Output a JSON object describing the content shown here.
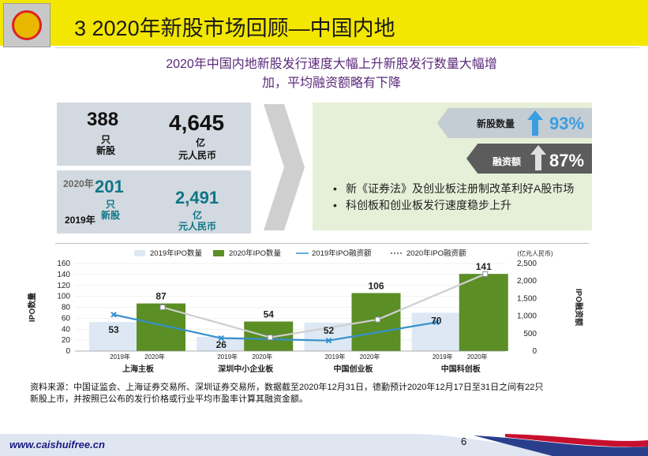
{
  "header": {
    "title": "3 2020年新股市场回顾—中国内地"
  },
  "subtitle": {
    "line1": "2020年中国内地新股发行速度大幅上升新股发行数量大幅增",
    "line2": "加，平均融资额略有下降"
  },
  "stats2020": {
    "count": "388",
    "count_unit": "只",
    "count_label": "新股",
    "amount": "4,645",
    "amount_unit": "亿",
    "amount_label": "元人民币"
  },
  "stats2019": {
    "year_2020": "2020年",
    "year_2019": "2019年",
    "count": "201",
    "count_unit": "只",
    "count_label": "新股",
    "amount": "2,491",
    "amount_unit": "亿",
    "amount_label": "元人民币"
  },
  "growth": {
    "ipo_count_label": "新股数量",
    "ipo_count_pct": "93%",
    "funds_label": "融资额",
    "funds_pct": "87%"
  },
  "bullets": [
    "新《证券法》及创业板注册制改革利好A股市场",
    "科创板和创业板发行速度稳步上升"
  ],
  "chart_data": {
    "type": "bar",
    "categories": [
      "上海主板",
      "深圳中小企业板",
      "中国创业板",
      "中国科创板"
    ],
    "year_labels": [
      "2019年",
      "2020年"
    ],
    "series": [
      {
        "name": "2019年IPO数量",
        "type": "bar",
        "axis": "left",
        "values": [
          53,
          26,
          52,
          70
        ],
        "color": "#dde8f4"
      },
      {
        "name": "2020年IPO数量",
        "type": "bar",
        "axis": "left",
        "values": [
          87,
          54,
          106,
          141
        ],
        "color": "#5b8e24"
      },
      {
        "name": "2019年IPO融资额",
        "type": "line",
        "axis": "right",
        "values": [
          1040,
          370,
          300,
          820
        ],
        "color": "#3690cc"
      },
      {
        "name": "2020年IPO融资额",
        "type": "line",
        "axis": "right",
        "values": [
          1250,
          390,
          900,
          2200
        ],
        "color": "#cfcfcf"
      }
    ],
    "bar_labels": {
      "2019年IPO数量": [
        "53",
        "26",
        "52",
        "70"
      ],
      "2020年IPO数量": [
        "87",
        "54",
        "106",
        "141"
      ]
    },
    "ylabel": "IPO数量",
    "ylabel_right": "IPO融资额",
    "yunit_right": "(亿元人民币)",
    "ylim": [
      0,
      160
    ],
    "ylim_right": [
      0,
      2500
    ],
    "yticks": [
      "0",
      "20",
      "40",
      "60",
      "80",
      "100",
      "120",
      "140",
      "160"
    ],
    "yticks_right": [
      "0",
      "500",
      "1,000",
      "1,500",
      "2,000",
      "2,500"
    ],
    "legend_position": "top"
  },
  "source": {
    "line1": "资料来源：中国证监会、上海证券交易所、深圳证券交易所，数据截至2020年12月31日，德勤预计2020年12月17日至31日之间有22只",
    "line2": "新股上市，并按照已公布的发行价格或行业平均市盈率计算其融资金额。"
  },
  "footer": {
    "url": "www.caishuifree.cn",
    "page": "6"
  }
}
